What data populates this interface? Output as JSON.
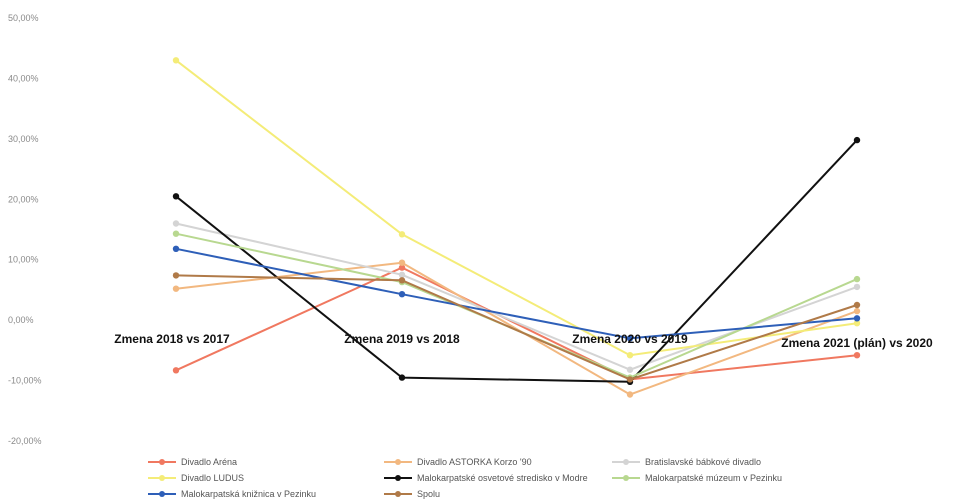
{
  "chart_data": {
    "type": "line",
    "categories": [
      "Zmena 2018 vs 2017",
      "Zmena 2019 vs 2018",
      "Zmena 2020 vs 2019",
      "Zmena 2021 (plán) vs 2020"
    ],
    "y_ticks": [
      "50,00%",
      "40,00%",
      "30,00%",
      "20,00%",
      "10,00%",
      "0,00%",
      "-10,00%",
      "-20,00%"
    ],
    "ylim": [
      -20,
      50
    ],
    "y_unit": "%",
    "legend_position": "bottom",
    "series": [
      {
        "name": "Divadlo Aréna",
        "color": "#f07860",
        "values": [
          -8.3,
          8.7,
          -9.8,
          -5.8
        ]
      },
      {
        "name": "Divadlo ASTORKA Korzo '90",
        "color": "#f2b880",
        "values": [
          5.2,
          9.5,
          -12.3,
          1.5
        ]
      },
      {
        "name": "Bratislavské bábkové divadlo",
        "color": "#d4d4d4",
        "values": [
          16.0,
          7.5,
          -8.2,
          5.5
        ]
      },
      {
        "name": "Divadlo LUDUS",
        "color": "#f4ec78",
        "values": [
          43.0,
          14.2,
          -5.8,
          -0.5
        ]
      },
      {
        "name": "Malokarpatské osvetové stredisko v Modre",
        "color": "#111111",
        "values": [
          20.5,
          -9.5,
          -10.2,
          29.8
        ]
      },
      {
        "name": "Malokarpatské múzeum v Pezinku",
        "color": "#b8d890",
        "values": [
          14.3,
          6.3,
          -9.5,
          6.8
        ]
      },
      {
        "name": "Malokarpatská knižnica v Pezinku",
        "color": "#2e5fb8",
        "values": [
          11.8,
          4.3,
          -3.0,
          0.3
        ]
      },
      {
        "name": "Spolu",
        "color": "#b07a48",
        "values": [
          7.4,
          6.6,
          -9.8,
          2.5
        ]
      }
    ]
  }
}
